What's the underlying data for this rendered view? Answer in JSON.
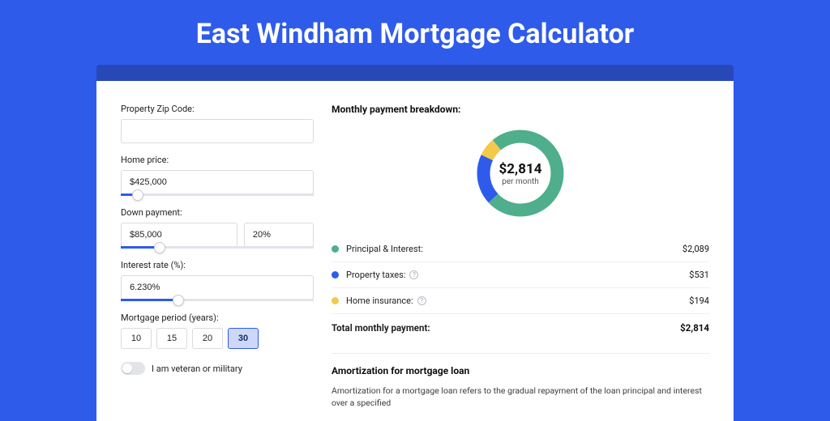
{
  "page": {
    "title": "East Windham Mortgage Calculator",
    "bg_color": "#2f5bea",
    "card_shadow_color": "#2749b8"
  },
  "form": {
    "zip": {
      "label": "Property Zip Code:",
      "value": ""
    },
    "home_price": {
      "label": "Home price:",
      "value": "$425,000",
      "slider_pct": 9
    },
    "down_payment": {
      "label": "Down payment:",
      "value": "$85,000",
      "pct_value": "20%",
      "slider_pct": 20
    },
    "interest": {
      "label": "Interest rate (%):",
      "value": "6.230%",
      "slider_pct": 30
    },
    "period": {
      "label": "Mortgage period (years):",
      "options": [
        "10",
        "15",
        "20",
        "30"
      ],
      "selected_index": 3
    },
    "veteran": {
      "label": "I am veteran or military",
      "on": false
    }
  },
  "breakdown": {
    "title": "Monthly payment breakdown:",
    "center_amount": "$2,814",
    "center_sub": "per month",
    "donut": {
      "segments": [
        {
          "label": "Principal & Interest:",
          "value": "$2,089",
          "color": "#4fae8c",
          "pct": 74.2
        },
        {
          "label": "Property taxes:",
          "value": "$531",
          "color": "#2f5bea",
          "pct": 18.9,
          "has_info": true
        },
        {
          "label": "Home insurance:",
          "value": "$194",
          "color": "#f3c94a",
          "pct": 6.9,
          "has_info": true
        }
      ],
      "ring_bg": "#eceef2"
    },
    "total": {
      "label": "Total monthly payment:",
      "value": "$2,814"
    }
  },
  "amortization": {
    "title": "Amortization for mortgage loan",
    "text": "Amortization for a mortgage loan refers to the gradual repayment of the loan principal and interest over a specified"
  }
}
